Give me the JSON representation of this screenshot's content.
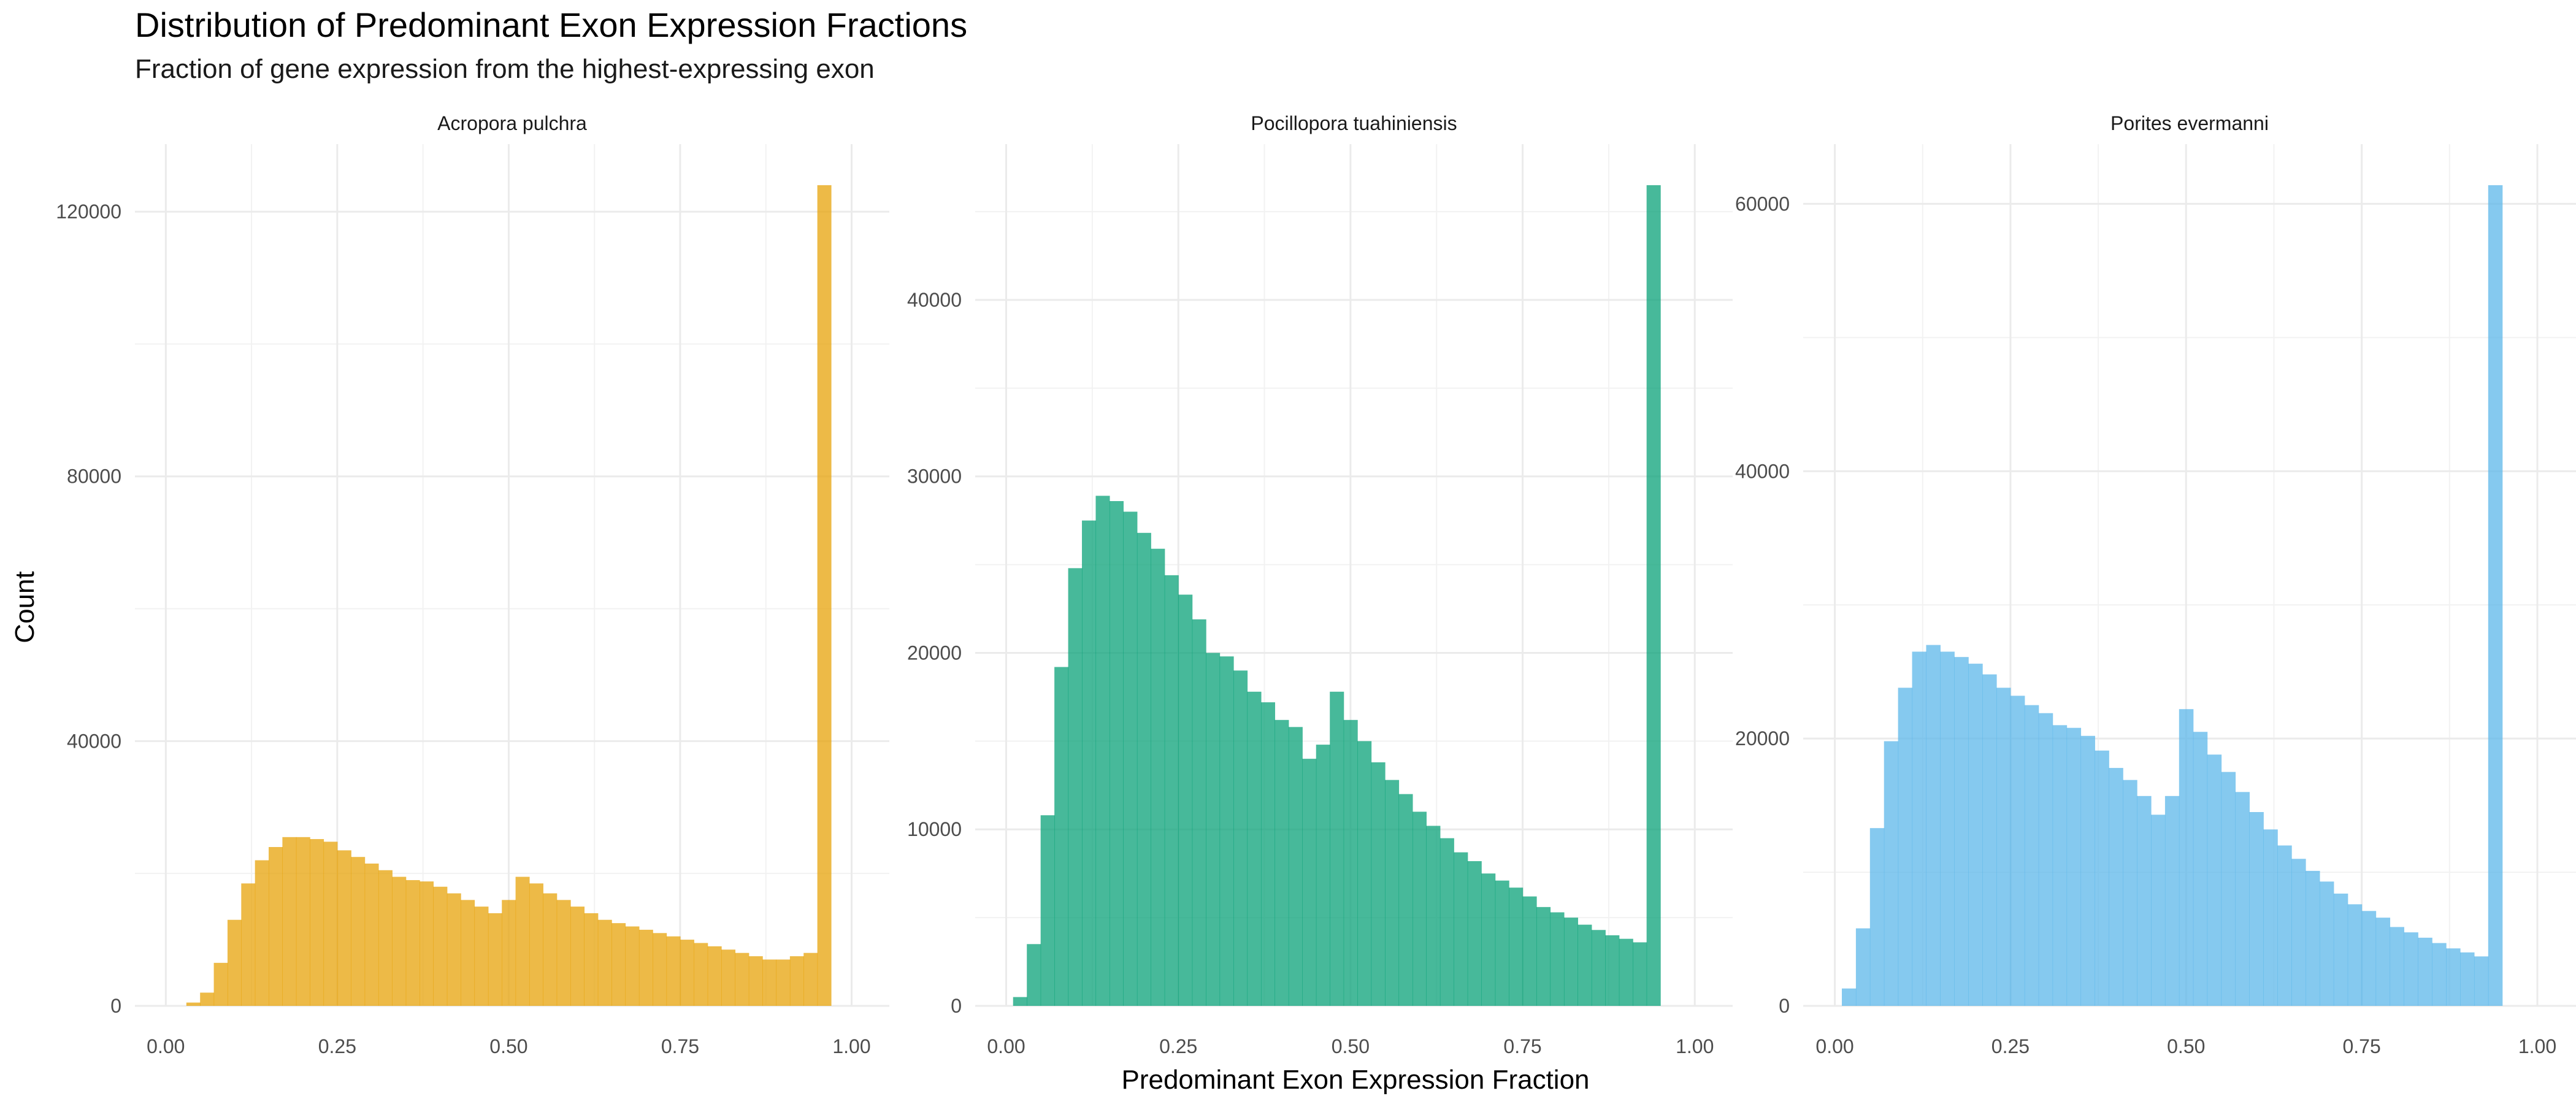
{
  "chart_data": {
    "type": "bar",
    "title": "Distribution of Predominant Exon Expression Fractions",
    "subtitle": "Fraction of gene expression from the highest-expressing exon",
    "xlabel": "Predominant Exon Expression Fraction",
    "ylabel": "Count",
    "grid": true,
    "bin_width": 0.02,
    "x_ticks": [
      "0.00",
      "0.25",
      "0.50",
      "0.75",
      "1.00"
    ],
    "colors": {
      "Acropora pulchra": "#E69F00",
      "Pocillopora tuahiniensis": "#009E73",
      "Porites evermanni": "#56B4E9"
    },
    "panels": [
      {
        "name": "Acropora pulchra",
        "ylim": [
          0,
          124000
        ],
        "y_ticks": [
          0,
          40000,
          80000,
          120000
        ],
        "bin_start": 0.03,
        "values": [
          500,
          2000,
          6500,
          13000,
          18500,
          22000,
          24000,
          25500,
          25500,
          25200,
          24800,
          23500,
          22500,
          21500,
          20500,
          19500,
          19000,
          18800,
          18000,
          17000,
          16000,
          15000,
          14000,
          16000,
          19500,
          18500,
          17000,
          16000,
          15000,
          14000,
          13000,
          12500,
          12000,
          11500,
          11000,
          10500,
          10000,
          9500,
          9000,
          8500,
          8000,
          7500,
          7000,
          7000,
          7500,
          8000,
          124000
        ]
      },
      {
        "name": "Pocillopora tuahiniensis",
        "ylim": [
          0,
          46500
        ],
        "y_ticks": [
          0,
          10000,
          20000,
          30000,
          40000
        ],
        "bin_start": 0.01,
        "values": [
          500,
          3500,
          10800,
          19200,
          24800,
          27500,
          28900,
          28600,
          28000,
          26800,
          25900,
          24400,
          23300,
          21900,
          20000,
          19800,
          19000,
          17800,
          17200,
          16200,
          15800,
          14000,
          14800,
          17800,
          16200,
          15000,
          13800,
          12800,
          12000,
          11000,
          10200,
          9500,
          8700,
          8200,
          7500,
          7100,
          6700,
          6200,
          5600,
          5300,
          5000,
          4600,
          4300,
          4000,
          3800,
          3600,
          46500
        ]
      },
      {
        "name": "Porites evermanni",
        "ylim": [
          0,
          61400
        ],
        "y_ticks": [
          0,
          20000,
          40000,
          60000
        ],
        "bin_start": 0.01,
        "values": [
          1300,
          5800,
          13300,
          19800,
          23800,
          26500,
          27000,
          26500,
          26100,
          25600,
          24800,
          23800,
          23200,
          22500,
          21900,
          21000,
          20800,
          20200,
          19100,
          17800,
          16900,
          15700,
          14300,
          15700,
          22200,
          20500,
          18800,
          17500,
          16000,
          14500,
          13200,
          12000,
          11000,
          10100,
          9300,
          8400,
          7600,
          7100,
          6600,
          5900,
          5500,
          5100,
          4700,
          4300,
          4000,
          3700,
          61400
        ]
      }
    ]
  }
}
